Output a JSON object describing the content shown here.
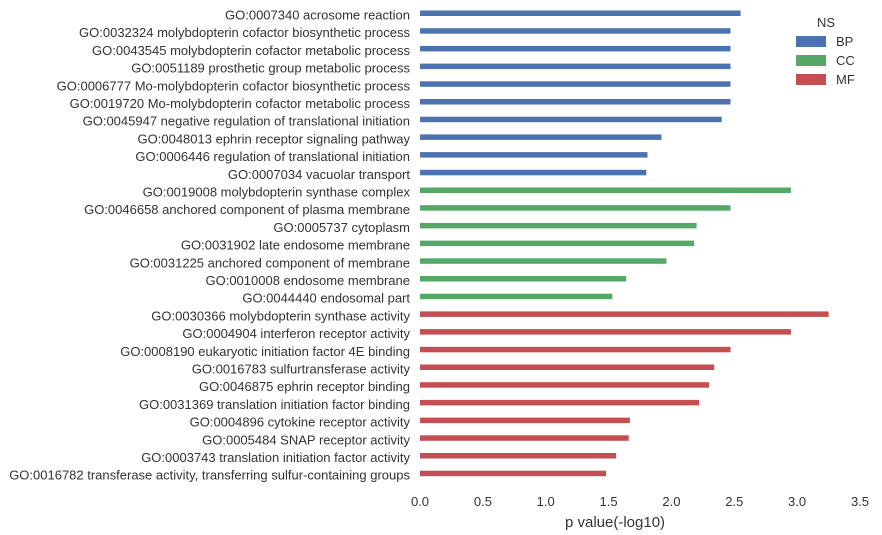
{
  "chart_data": {
    "type": "bar",
    "orientation": "horizontal",
    "xlabel": "p value(-log10)",
    "ylabel": "",
    "xlim": [
      0,
      3.5
    ],
    "xticks": [
      "0.0",
      "0.5",
      "1.0",
      "1.5",
      "2.0",
      "2.5",
      "3.0",
      "3.5"
    ],
    "grid": false,
    "legend": {
      "title": "NS",
      "placement": "top-right",
      "entries": [
        {
          "name": "BP",
          "color": "#4c72b0"
        },
        {
          "name": "CC",
          "color": "#55a868"
        },
        {
          "name": "MF",
          "color": "#c44e52"
        }
      ]
    },
    "bars": [
      {
        "label": "GO:0007340 acrosome reaction",
        "ns": "BP",
        "value": 2.55
      },
      {
        "label": "GO:0032324 molybdopterin cofactor biosynthetic process",
        "ns": "BP",
        "value": 2.47
      },
      {
        "label": "GO:0043545 molybdopterin cofactor metabolic process",
        "ns": "BP",
        "value": 2.47
      },
      {
        "label": "GO:0051189 prosthetic group metabolic process",
        "ns": "BP",
        "value": 2.47
      },
      {
        "label": "GO:0006777 Mo-molybdopterin cofactor biosynthetic process",
        "ns": "BP",
        "value": 2.47
      },
      {
        "label": "GO:0019720 Mo-molybdopterin cofactor metabolic process",
        "ns": "BP",
        "value": 2.47
      },
      {
        "label": "GO:0045947 negative regulation of translational initiation",
        "ns": "BP",
        "value": 2.4
      },
      {
        "label": "GO:0048013 ephrin receptor signaling pathway",
        "ns": "BP",
        "value": 1.92
      },
      {
        "label": "GO:0006446 regulation of translational initiation",
        "ns": "BP",
        "value": 1.81
      },
      {
        "label": "GO:0007034 vacuolar transport",
        "ns": "BP",
        "value": 1.8
      },
      {
        "label": "GO:0019008 molybdopterin synthase complex",
        "ns": "CC",
        "value": 2.95
      },
      {
        "label": "GO:0046658 anchored component of plasma membrane",
        "ns": "CC",
        "value": 2.47
      },
      {
        "label": "GO:0005737 cytoplasm",
        "ns": "CC",
        "value": 2.2
      },
      {
        "label": "GO:0031902 late endosome membrane",
        "ns": "CC",
        "value": 2.18
      },
      {
        "label": "GO:0031225 anchored component of membrane",
        "ns": "CC",
        "value": 1.96
      },
      {
        "label": "GO:0010008 endosome membrane",
        "ns": "CC",
        "value": 1.64
      },
      {
        "label": "GO:0044440 endosomal part",
        "ns": "CC",
        "value": 1.53
      },
      {
        "label": "GO:0030366 molybdopterin synthase activity",
        "ns": "MF",
        "value": 3.25
      },
      {
        "label": "GO:0004904 interferon receptor activity",
        "ns": "MF",
        "value": 2.95
      },
      {
        "label": "GO:0008190 eukaryotic initiation factor 4E binding",
        "ns": "MF",
        "value": 2.47
      },
      {
        "label": "GO:0016783 sulfurtransferase activity",
        "ns": "MF",
        "value": 2.34
      },
      {
        "label": "GO:0046875 ephrin receptor binding",
        "ns": "MF",
        "value": 2.3
      },
      {
        "label": "GO:0031369 translation initiation factor binding",
        "ns": "MF",
        "value": 2.22
      },
      {
        "label": "GO:0004896 cytokine receptor activity",
        "ns": "MF",
        "value": 1.67
      },
      {
        "label": "GO:0005484 SNAP receptor activity",
        "ns": "MF",
        "value": 1.66
      },
      {
        "label": "GO:0003743 translation initiation factor activity",
        "ns": "MF",
        "value": 1.56
      },
      {
        "label": "GO:0016782 transferase activity, transferring sulfur-containing groups",
        "ns": "MF",
        "value": 1.48
      }
    ]
  }
}
